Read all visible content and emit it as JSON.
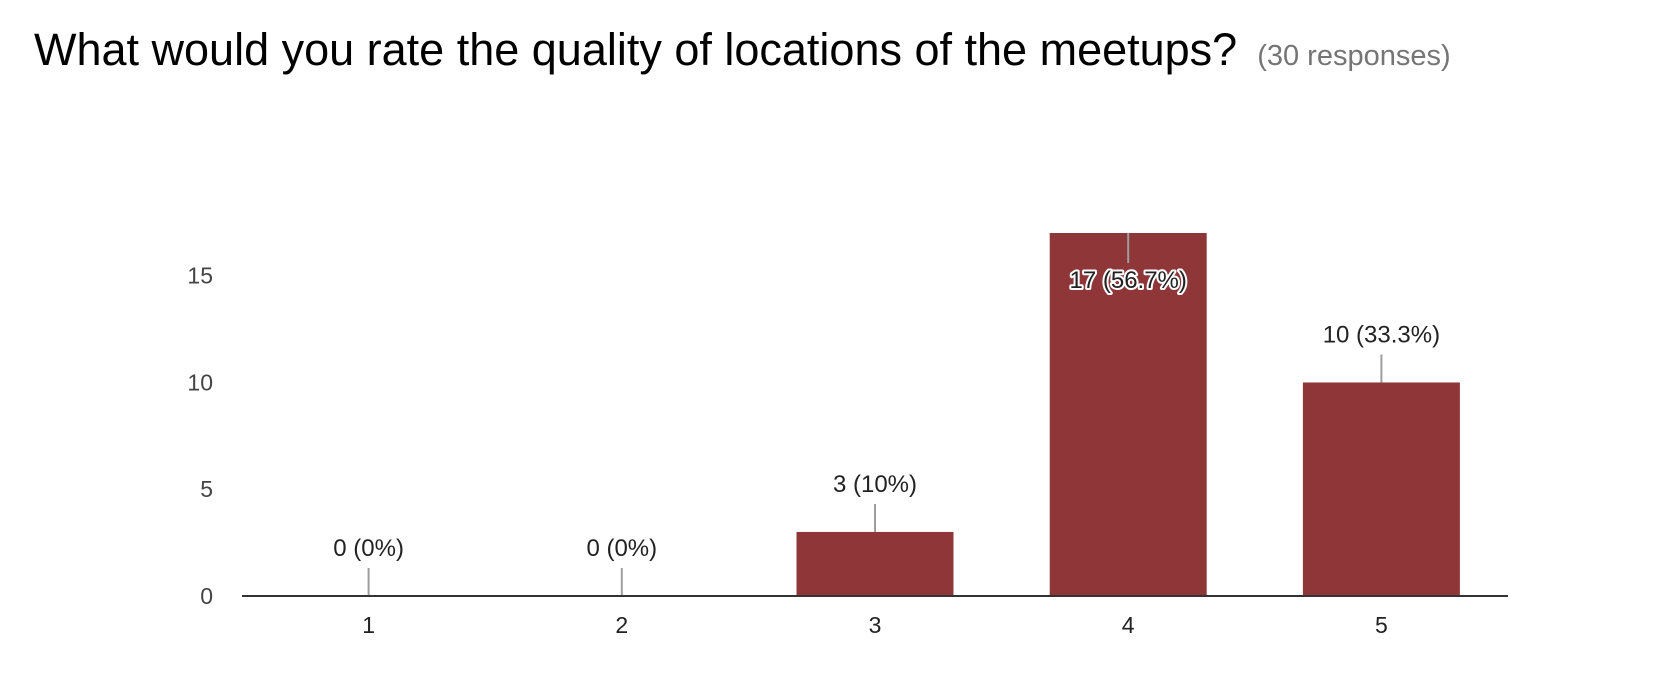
{
  "header": {
    "title": "What would you rate the quality of locations of the meetups?",
    "responses": "(30 responses)"
  },
  "chart_data": {
    "type": "bar",
    "title": "What would you rate the quality of locations of the meetups?",
    "subtitle": "(30 responses)",
    "xlabel": "",
    "ylabel": "",
    "categories": [
      "1",
      "2",
      "3",
      "4",
      "5"
    ],
    "values": [
      0,
      0,
      3,
      17,
      10
    ],
    "data_labels": [
      "0 (0%)",
      "0 (0%)",
      "3 (10%)",
      "17 (56.7%)",
      "10 (33.3%)"
    ],
    "yticks": [
      0,
      5,
      10,
      15
    ],
    "ylim": [
      0,
      17
    ],
    "grid": false,
    "legend": "none",
    "bar_color": "#8e3638",
    "axis_color": "#333333",
    "leader_color": "#9e9e9e"
  }
}
